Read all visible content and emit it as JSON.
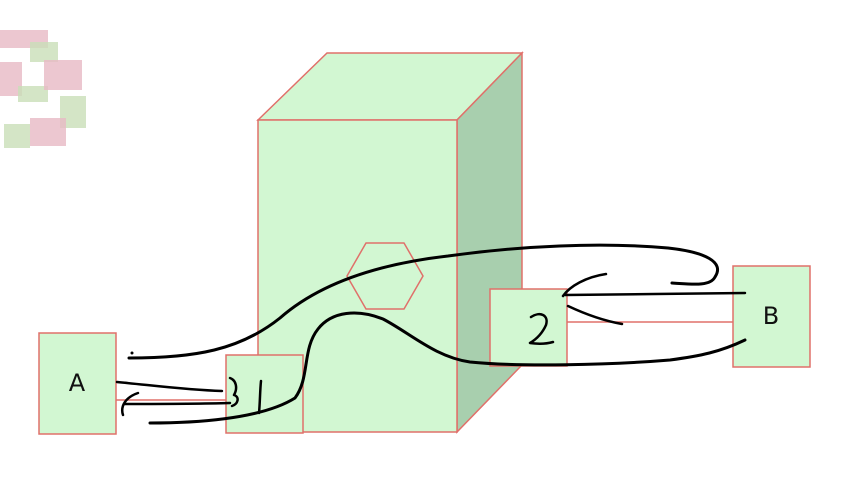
{
  "colors": {
    "box_fill": "#d2f7d2",
    "box_side_fill": "#a8cfae",
    "box_outline": "#e0706a",
    "ink": "#000000",
    "logo_pink": "#e7b9c4",
    "logo_green": "#c9dfb8"
  },
  "nodes": {
    "a": {
      "label": "A"
    },
    "b": {
      "label": "B"
    }
  },
  "handwriting": {
    "left_port": "1",
    "right_port": "2"
  },
  "logo": {
    "icon": "partial-logo-icon"
  },
  "icons": {
    "central": "cube-icon",
    "router": "hexagon-icon"
  }
}
